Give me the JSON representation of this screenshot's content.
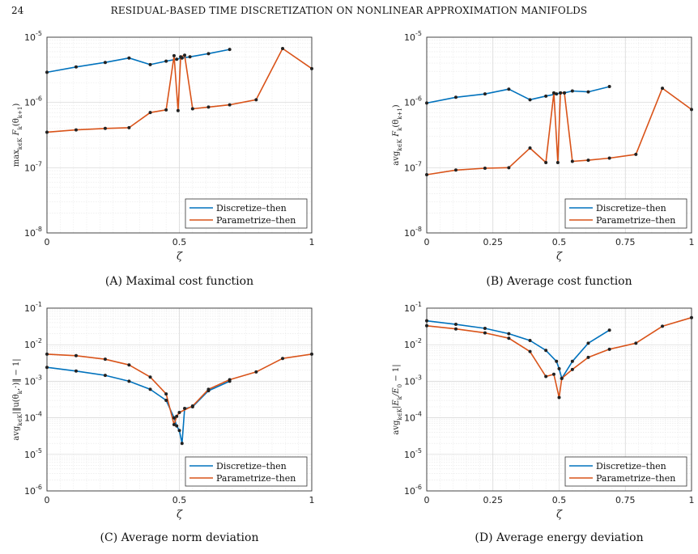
{
  "page": {
    "number": "24",
    "running_title": "RESIDUAL-BASED TIME DISCRETIZATION ON NONLINEAR APPROXIMATION MANIFOLDS"
  },
  "colors": {
    "series1": "#0072BD",
    "series2": "#D95319",
    "marker": "#222222"
  },
  "chart_data": [
    {
      "type": "line",
      "caption": "(A) Maximal cost function",
      "xlabel": "ζ",
      "ylabel": "max_{k∈K} F_k(θ_{k+1})",
      "yscale": "log",
      "xlim": [
        0,
        1
      ],
      "ylim": [
        1e-08,
        1e-05
      ],
      "xticks": [
        "0",
        "0.5",
        "1"
      ],
      "yticks_exp": [
        -8,
        -7,
        -6,
        -5
      ],
      "legend_position": "lower-right",
      "series": [
        {
          "name": "Discretize–then",
          "x": [
            0.0,
            0.11,
            0.22,
            0.31,
            0.39,
            0.45,
            0.49,
            0.51,
            0.54,
            0.61,
            0.69
          ],
          "y": [
            2.9e-06,
            3.5e-06,
            4.1e-06,
            4.8e-06,
            3.8e-06,
            4.3e-06,
            4.6e-06,
            4.8e-06,
            5e-06,
            5.6e-06,
            6.5e-06
          ]
        },
        {
          "name": "Parametrize–then",
          "x": [
            0.0,
            0.11,
            0.22,
            0.31,
            0.39,
            0.45,
            0.48,
            0.495,
            0.505,
            0.52,
            0.55,
            0.61,
            0.69,
            0.79,
            0.89,
            1.0
          ],
          "y": [
            3.5e-07,
            3.8e-07,
            4e-07,
            4.1e-07,
            7e-07,
            7.7e-07,
            5.2e-06,
            7.5e-07,
            5e-06,
            5.3e-06,
            8e-07,
            8.5e-07,
            9.2e-07,
            1.1e-06,
            6.7e-06,
            3.3e-06
          ]
        }
      ]
    },
    {
      "type": "line",
      "caption": "(B) Average cost function",
      "xlabel": "ζ",
      "ylabel": "avg_{k∈K} F_k(θ_{k+1})",
      "yscale": "log",
      "xlim": [
        0,
        1
      ],
      "ylim": [
        1e-08,
        1e-05
      ],
      "xticks": [
        "0",
        "0.25",
        "0.5",
        "0.75",
        "1"
      ],
      "yticks_exp": [
        -8,
        -7,
        -6,
        -5
      ],
      "legend_position": "lower-right",
      "series": [
        {
          "name": "Discretize–then",
          "x": [
            0.0,
            0.11,
            0.22,
            0.31,
            0.39,
            0.45,
            0.49,
            0.505,
            0.52,
            0.55,
            0.61,
            0.69
          ],
          "y": [
            9.8e-07,
            1.2e-06,
            1.35e-06,
            1.6e-06,
            1.1e-06,
            1.25e-06,
            1.35e-06,
            1.4e-06,
            1.4e-06,
            1.5e-06,
            1.45e-06,
            1.75e-06
          ]
        },
        {
          "name": "Parametrize–then",
          "x": [
            0.0,
            0.11,
            0.22,
            0.31,
            0.39,
            0.45,
            0.48,
            0.495,
            0.505,
            0.52,
            0.55,
            0.61,
            0.69,
            0.79,
            0.89,
            1.0
          ],
          "y": [
            7.8e-08,
            9.2e-08,
            9.8e-08,
            1e-07,
            2e-07,
            1.2e-07,
            1.4e-06,
            1.2e-07,
            1.4e-06,
            1.4e-06,
            1.25e-07,
            1.3e-07,
            1.4e-07,
            1.6e-07,
            1.65e-06,
            7.8e-07
          ]
        }
      ]
    },
    {
      "type": "line",
      "caption": "(C) Average norm deviation",
      "xlabel": "ζ",
      "ylabel": "avg_{k∈K} | ||u(θ_k,·)|| − 1 |",
      "yscale": "log",
      "xlim": [
        0,
        1
      ],
      "ylim": [
        1e-06,
        0.1
      ],
      "xticks": [
        "0",
        "0.5",
        "1"
      ],
      "yticks_exp": [
        -6,
        -5,
        -4,
        -3,
        -2,
        -1
      ],
      "legend_position": "lower-right",
      "series": [
        {
          "name": "Discretize–then",
          "x": [
            0.0,
            0.11,
            0.22,
            0.31,
            0.39,
            0.45,
            0.48,
            0.49,
            0.5,
            0.51,
            0.52,
            0.55,
            0.61,
            0.69
          ],
          "y": [
            0.0024,
            0.0019,
            0.00145,
            0.001,
            0.0006,
            0.0003,
            0.0001,
            6e-05,
            4.5e-05,
            2e-05,
            0.00018,
            0.0002,
            0.00055,
            0.001
          ]
        },
        {
          "name": "Parametrize–then",
          "x": [
            0.0,
            0.11,
            0.22,
            0.31,
            0.39,
            0.45,
            0.48,
            0.49,
            0.5,
            0.55,
            0.61,
            0.69,
            0.79,
            0.89,
            1.0
          ],
          "y": [
            0.0055,
            0.005,
            0.004,
            0.0028,
            0.0013,
            0.00045,
            6.5e-05,
            0.00011,
            0.00014,
            0.00021,
            0.0006,
            0.0011,
            0.0018,
            0.0042,
            0.0055
          ]
        }
      ]
    },
    {
      "type": "line",
      "caption": "(D) Average energy deviation",
      "xlabel": "ζ",
      "ylabel": "avg_{k∈K} |E_k / E_0 − 1|",
      "yscale": "log",
      "xlim": [
        0,
        1
      ],
      "ylim": [
        1e-06,
        0.1
      ],
      "xticks": [
        "0",
        "0.25",
        "0.5",
        "0.75",
        "1"
      ],
      "yticks_exp": [
        -6,
        -5,
        -4,
        -3,
        -2,
        -1
      ],
      "legend_position": "lower-right",
      "series": [
        {
          "name": "Discretize–then",
          "x": [
            0.0,
            0.11,
            0.22,
            0.31,
            0.39,
            0.45,
            0.49,
            0.5,
            0.51,
            0.55,
            0.61,
            0.69
          ],
          "y": [
            0.045,
            0.036,
            0.028,
            0.02,
            0.013,
            0.007,
            0.0035,
            0.0022,
            0.0012,
            0.0035,
            0.011,
            0.025
          ]
        },
        {
          "name": "Parametrize–then",
          "x": [
            0.0,
            0.11,
            0.22,
            0.31,
            0.39,
            0.45,
            0.48,
            0.5,
            0.51,
            0.55,
            0.61,
            0.69,
            0.79,
            0.89,
            1.0
          ],
          "y": [
            0.033,
            0.027,
            0.021,
            0.015,
            0.0065,
            0.00135,
            0.00155,
            0.00036,
            0.0012,
            0.0021,
            0.0045,
            0.0075,
            0.011,
            0.032,
            0.055
          ]
        }
      ]
    }
  ]
}
